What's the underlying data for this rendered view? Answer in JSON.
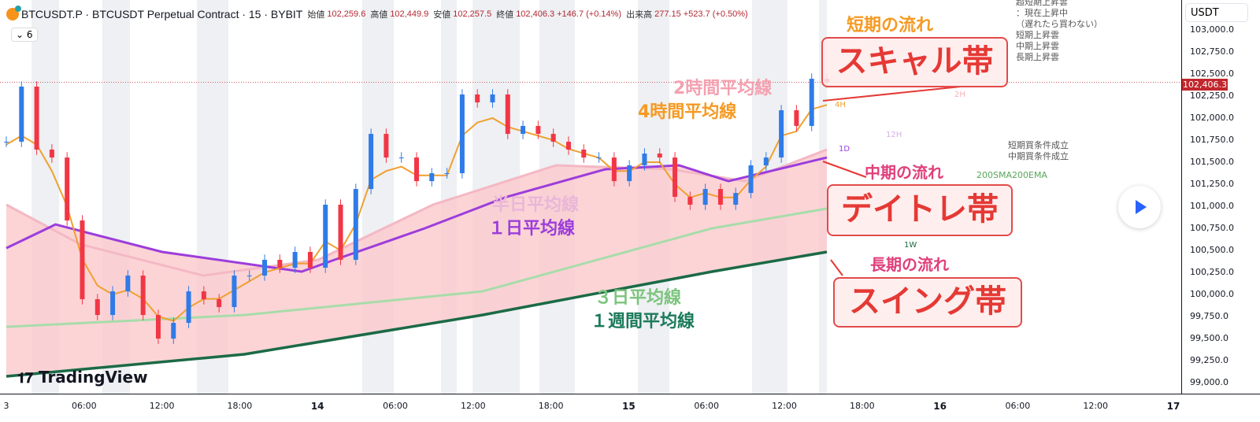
{
  "header": {
    "symbol": "BTCUSDT.P · BTCUSDT Perpetual Contract · 15 · BYBIT",
    "open_label": "始値",
    "open": "102,259.6",
    "high_label": "高値",
    "high": "102,449.9",
    "low_label": "安値",
    "low": "102,257.5",
    "close_label": "終値",
    "close": "102,406.3",
    "change": "+146.7 (+0.14%)",
    "volume_label": "出来高",
    "volume": "277.15",
    "vol_change": "+523.7 (+0.50%)",
    "indicator_count": "6"
  },
  "currency": "USDT",
  "current_price": "102,406.3",
  "notes": {
    "top": "超短期上昇雲\n：現在上昇中\n（遅れたら買わない）\n短期上昇雲\n中期上昇雲\n長期上昇雲",
    "buy": "短期買条件成立\n中期買条件成立",
    "ma200": "200SMA200EMA"
  },
  "annotations": {
    "short_flow": "短期の流れ",
    "scalp": "スキャル帯",
    "mid_flow": "中期の流れ",
    "daytrade": "デイトレ帯",
    "long_flow": "長期の流れ",
    "swing": "スイング帯",
    "ma2h": "2時間平均線",
    "ma4h": "4時間平均線",
    "ma12h": "半日平均線",
    "ma1d": "１日平均線",
    "ma3d": "３日平均線",
    "ma1w": "１週間平均線"
  },
  "line_labels": {
    "h2": "2H",
    "h4": "4H",
    "h12": "12H",
    "d1": "1D",
    "w1": "1W"
  },
  "brand": "TradingView",
  "colors": {
    "up": "#089981",
    "down": "#f23645",
    "candle_blue": "#2f7be8",
    "ma4h": "#f0a030",
    "ma1d": "#9c3ddb",
    "ma12h": "#f4b8c4",
    "ma3d": "#a8dcaa",
    "ma1w": "#1b6a46",
    "band": "#fbc9cc",
    "annotation": "#e53935"
  },
  "chart_data": {
    "type": "candlestick",
    "ylim": [
      98900,
      103050
    ],
    "y_ticks": [
      "103,000.0",
      "102,750.0",
      "102,500.0",
      "102,250.0",
      "102,000.0",
      "101,750.0",
      "101,500.0",
      "101,250.0",
      "101,000.0",
      "100,750.0",
      "100,500.0",
      "100,250.0",
      "100,000.0",
      "99,750.0",
      "99,500.0",
      "99,250.0",
      "99,000.0"
    ],
    "x_ticks": [
      {
        "t": "3",
        "bold": false
      },
      {
        "t": "06:00"
      },
      {
        "t": "12:00"
      },
      {
        "t": "18:00"
      },
      {
        "t": "14",
        "bold": true
      },
      {
        "t": "06:00"
      },
      {
        "t": "12:00"
      },
      {
        "t": "18:00"
      },
      {
        "t": "15",
        "bold": true
      },
      {
        "t": "06:00"
      },
      {
        "t": "12:00"
      },
      {
        "t": "18:00"
      },
      {
        "t": "16",
        "bold": true
      },
      {
        "t": "06:00"
      },
      {
        "t": "12:00"
      },
      {
        "t": "17",
        "bold": true
      }
    ],
    "close": [
      101732,
      102357,
      101643,
      101553,
      100839,
      99946,
      99767,
      100035,
      100214,
      99767,
      99499,
      99678,
      100035,
      99946,
      99857,
      100214,
      100214,
      100393,
      100303,
      100482,
      100303,
      101018,
      100393,
      101196,
      101821,
      101553,
      101553,
      101285,
      101375,
      101375,
      102268,
      102178,
      102268,
      101821,
      101911,
      101821,
      101732,
      101643,
      101553,
      101553,
      101285,
      101464,
      101598,
      101553,
      101107,
      101018,
      101196,
      101018,
      101151,
      101464,
      101553,
      102089,
      101911,
      102446,
      102406
    ],
    "ma_4h": [
      101700,
      101800,
      101700,
      101400,
      101000,
      100400,
      100100,
      100000,
      100050,
      99950,
      99750,
      99700,
      99850,
      99950,
      99950,
      100050,
      100150,
      100250,
      100300,
      100350,
      100350,
      100600,
      100500,
      100800,
      101300,
      101400,
      101450,
      101350,
      101350,
      101350,
      101800,
      101950,
      102000,
      101900,
      101850,
      101800,
      101750,
      101650,
      101600,
      101550,
      101400,
      101400,
      101500,
      101500,
      101250,
      101100,
      101150,
      101100,
      101100,
      101300,
      101450,
      101800,
      101850,
      102100,
      102150
    ],
    "ma_12h": [
      [
        0,
        101018
      ],
      [
        0.09,
        100570
      ],
      [
        0.24,
        100214
      ],
      [
        0.38,
        100393
      ],
      [
        0.52,
        101018
      ],
      [
        0.67,
        101464
      ],
      [
        0.81,
        101420
      ],
      [
        0.9,
        101285
      ],
      [
        1,
        101643
      ]
    ],
    "ma_1d": [
      [
        0,
        100526
      ],
      [
        0.06,
        100794
      ],
      [
        0.19,
        100482
      ],
      [
        0.36,
        100259
      ],
      [
        0.4,
        100393
      ],
      [
        0.51,
        100750
      ],
      [
        0.61,
        101107
      ],
      [
        0.73,
        101420
      ],
      [
        0.82,
        101464
      ],
      [
        0.88,
        101285
      ],
      [
        1,
        101553
      ]
    ],
    "ma_3d": [
      [
        0,
        99633
      ],
      [
        0.29,
        99767
      ],
      [
        0.58,
        100035
      ],
      [
        0.86,
        100750
      ],
      [
        1,
        100973
      ]
    ],
    "ma_1w": [
      [
        0,
        99071
      ],
      [
        0.29,
        99321
      ],
      [
        0.58,
        99767
      ],
      [
        0.86,
        100259
      ],
      [
        1,
        100482
      ]
    ]
  }
}
